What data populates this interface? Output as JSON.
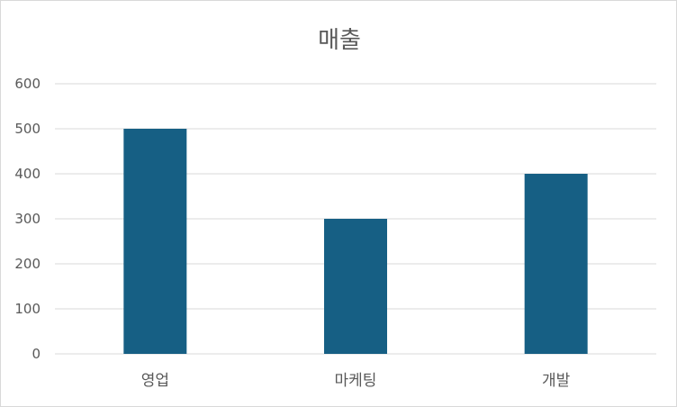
{
  "chart_data": {
    "type": "bar",
    "title": "매출",
    "categories": [
      "영업",
      "마케팅",
      "개발"
    ],
    "series": [
      {
        "values": [
          500,
          300,
          400
        ]
      }
    ],
    "xlabel": "",
    "ylabel": "",
    "ylim": [
      0,
      600
    ],
    "yticks": [
      0,
      100,
      200,
      300,
      400,
      500,
      600
    ],
    "grid": true,
    "legend": "none",
    "colors": {
      "bar": "#165f84",
      "grid": "#d9d9d9",
      "text": "#595959"
    }
  }
}
